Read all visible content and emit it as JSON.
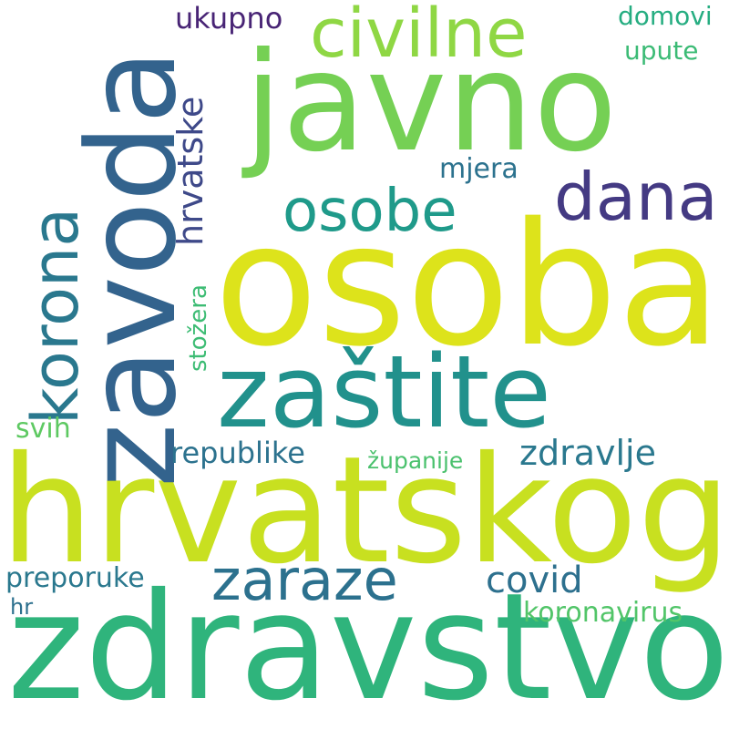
{
  "words": [
    {
      "id": "osoba",
      "text": "osoba",
      "color": "#dde31b"
    },
    {
      "id": "hrvatskog",
      "text": "hrvatskog",
      "color": "#c8e020"
    },
    {
      "id": "zdravstvo",
      "text": "zdravstvo",
      "color": "#2fb47c"
    },
    {
      "id": "javno",
      "text": "javno",
      "color": "#75d054"
    },
    {
      "id": "zavoda",
      "text": "zavoda",
      "color": "#33638d"
    },
    {
      "id": "zastite",
      "text": "zaštite",
      "color": "#21918c"
    },
    {
      "id": "civilne",
      "text": "civilne",
      "color": "#8fd744"
    },
    {
      "id": "dana",
      "text": "dana",
      "color": "#443a83"
    },
    {
      "id": "osobe",
      "text": "osobe",
      "color": "#1f9a8a"
    },
    {
      "id": "korona",
      "text": "korona",
      "color": "#2a788e"
    },
    {
      "id": "zaraze",
      "text": "zaraze",
      "color": "#2c718e"
    },
    {
      "id": "zdravlje",
      "text": "zdravlje",
      "color": "#2a788e"
    },
    {
      "id": "hrvatske",
      "text": "hrvatske",
      "color": "#3e4989"
    },
    {
      "id": "covid",
      "text": "covid",
      "color": "#2d708e"
    },
    {
      "id": "republike",
      "text": "republike",
      "color": "#2c728e"
    },
    {
      "id": "mjera",
      "text": "mjera",
      "color": "#2c728e"
    },
    {
      "id": "ukupno",
      "text": "ukupno",
      "color": "#482475"
    },
    {
      "id": "domovi",
      "text": "domovi",
      "color": "#26ad81"
    },
    {
      "id": "upute",
      "text": "upute",
      "color": "#3bbb75"
    },
    {
      "id": "preporuke",
      "text": "preporuke",
      "color": "#2a788e"
    },
    {
      "id": "koronavirus",
      "text": "koronavirus",
      "color": "#52c569"
    },
    {
      "id": "svih",
      "text": "svih",
      "color": "#5ec962"
    },
    {
      "id": "stozera",
      "text": "stožera",
      "color": "#3dbc74"
    },
    {
      "id": "zupanije",
      "text": "županije",
      "color": "#4ac16d"
    },
    {
      "id": "hr",
      "text": "hr",
      "color": "#2d708e"
    }
  ]
}
